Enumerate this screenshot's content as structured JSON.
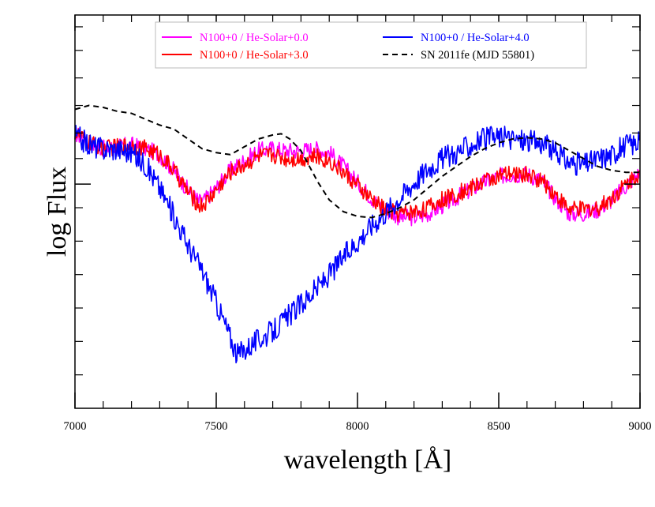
{
  "chart_data": {
    "type": "line",
    "title": "",
    "xlabel": "wavelength [Å]",
    "ylabel": "log Flux",
    "xlim": [
      7000,
      9000
    ],
    "x_ticks": [
      7000,
      7500,
      8000,
      8500,
      9000
    ],
    "x_tick_labels": [
      "7000",
      "7500",
      "8000",
      "8500",
      "9000"
    ],
    "ylim": [
      0,
      10
    ],
    "y_major_ticks": [
      5.7
    ],
    "y_minor_ticks": [
      0.85,
      1.7,
      2.55,
      3.4,
      4.25,
      5.1,
      6.35,
      7.0,
      7.7,
      8.4,
      9.1,
      9.7
    ],
    "grid": false,
    "legend_placement": "top-center",
    "series": [
      {
        "name": "N100+0 / He-Solar+0.0",
        "color": "#ff00ff",
        "style": "solid",
        "noise": 0.22,
        "x": [
          7000,
          7050,
          7100,
          7150,
          7200,
          7250,
          7300,
          7350,
          7400,
          7440,
          7460,
          7500,
          7550,
          7600,
          7650,
          7700,
          7750,
          7800,
          7850,
          7900,
          7950,
          8000,
          8050,
          8100,
          8150,
          8200,
          8250,
          8300,
          8350,
          8400,
          8450,
          8500,
          8550,
          8600,
          8650,
          8700,
          8750,
          8800,
          8850,
          8900,
          8950,
          9000
        ],
        "y": [
          7.0,
          6.75,
          6.6,
          6.65,
          6.7,
          6.6,
          6.45,
          6.05,
          5.55,
          5.25,
          5.3,
          5.6,
          6.05,
          6.3,
          6.55,
          6.6,
          6.55,
          6.55,
          6.6,
          6.5,
          6.15,
          5.75,
          5.35,
          5.05,
          4.85,
          4.85,
          4.95,
          5.15,
          5.35,
          5.55,
          5.75,
          5.9,
          5.95,
          5.95,
          5.8,
          5.35,
          4.95,
          4.95,
          5.05,
          5.3,
          5.65,
          6.0
        ]
      },
      {
        "name": "N100+0 / He-Solar+3.0",
        "color": "#ff0000",
        "style": "solid",
        "noise": 0.22,
        "x": [
          7000,
          7050,
          7100,
          7150,
          7200,
          7250,
          7300,
          7350,
          7400,
          7440,
          7460,
          7500,
          7550,
          7600,
          7650,
          7700,
          7750,
          7800,
          7850,
          7900,
          7950,
          8000,
          8050,
          8100,
          8150,
          8200,
          8250,
          8300,
          8350,
          8400,
          8450,
          8500,
          8550,
          8600,
          8650,
          8700,
          8750,
          8800,
          8850,
          8900,
          8950,
          9000
        ],
        "y": [
          7.0,
          6.75,
          6.6,
          6.65,
          6.7,
          6.6,
          6.45,
          6.05,
          5.5,
          5.15,
          5.2,
          5.55,
          6.0,
          6.2,
          6.4,
          6.45,
          6.35,
          6.35,
          6.4,
          6.3,
          6.0,
          5.65,
          5.3,
          5.05,
          4.95,
          5.0,
          5.1,
          5.3,
          5.45,
          5.6,
          5.8,
          5.9,
          5.95,
          5.95,
          5.8,
          5.45,
          5.05,
          5.05,
          5.1,
          5.35,
          5.7,
          6.0
        ]
      },
      {
        "name": "N100+0 / He-Solar+4.0",
        "color": "#0000ff",
        "style": "solid",
        "noise": 0.3,
        "x": [
          7000,
          7050,
          7100,
          7150,
          7200,
          7250,
          7300,
          7350,
          7400,
          7450,
          7500,
          7550,
          7575,
          7600,
          7650,
          7700,
          7750,
          7800,
          7850,
          7900,
          7950,
          8000,
          8050,
          8100,
          8150,
          8200,
          8250,
          8300,
          8350,
          8400,
          8450,
          8500,
          8550,
          8600,
          8650,
          8700,
          8750,
          8800,
          8850,
          8900,
          8950,
          9000
        ],
        "y": [
          6.95,
          6.7,
          6.6,
          6.6,
          6.5,
          6.2,
          5.6,
          4.9,
          4.15,
          3.5,
          2.7,
          1.8,
          1.35,
          1.5,
          1.75,
          1.95,
          2.3,
          2.65,
          3.0,
          3.4,
          3.85,
          4.25,
          4.65,
          5.0,
          5.35,
          5.75,
          6.1,
          6.35,
          6.5,
          6.7,
          6.85,
          6.9,
          6.85,
          6.8,
          6.75,
          6.5,
          6.25,
          6.2,
          6.35,
          6.45,
          6.7,
          6.75
        ]
      },
      {
        "name": "SN 2011fe (MJD 55801)",
        "color": "#000000",
        "style": "dashed",
        "noise": 0,
        "x": [
          7000,
          7050,
          7100,
          7150,
          7200,
          7250,
          7300,
          7350,
          7400,
          7450,
          7500,
          7550,
          7600,
          7650,
          7700,
          7730,
          7760,
          7800,
          7830,
          7860,
          7900,
          7950,
          8000,
          8050,
          8100,
          8150,
          8200,
          8250,
          8300,
          8350,
          8400,
          8450,
          8500,
          8550,
          8600,
          8650,
          8700,
          8750,
          8800,
          8850,
          8900,
          8950,
          9000
        ],
        "y": [
          7.6,
          7.7,
          7.65,
          7.55,
          7.5,
          7.35,
          7.2,
          7.1,
          6.85,
          6.6,
          6.5,
          6.45,
          6.65,
          6.85,
          6.95,
          6.98,
          6.85,
          6.55,
          6.15,
          5.75,
          5.3,
          5.0,
          4.88,
          4.85,
          4.95,
          5.1,
          5.3,
          5.6,
          5.9,
          6.15,
          6.4,
          6.6,
          6.75,
          6.85,
          6.88,
          6.85,
          6.75,
          6.55,
          6.35,
          6.15,
          6.05,
          6.0,
          6.0
        ]
      }
    ]
  }
}
